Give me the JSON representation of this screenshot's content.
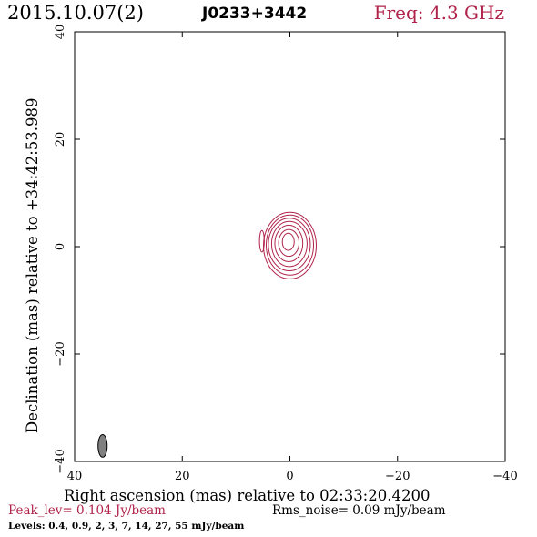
{
  "header": {
    "date": "2015.10.07(2)",
    "source": "J0233+3442",
    "freq": "Freq: 4.3 GHz"
  },
  "chart_data": {
    "type": "contour",
    "xlabel": "Right ascension (mas) relative to 02:33:20.4200",
    "ylabel": "Declination (mas) relative to +34:42:53.989",
    "xlim": [
      40,
      -40
    ],
    "ylim": [
      -40,
      40
    ],
    "xticks": [
      40,
      20,
      0,
      -20,
      -40
    ],
    "yticks": [
      -40,
      -20,
      0,
      20,
      40
    ],
    "xtick_labels": [
      "40",
      "20",
      "0",
      "−20",
      "−40"
    ],
    "ytick_labels": [
      "−40",
      "−20",
      "0",
      "20",
      "40"
    ],
    "contour_color": "#b0234a",
    "contour_levels_mJy": [
      0.4,
      0.9,
      2,
      3,
      7,
      14,
      27,
      55
    ],
    "contours": [
      {
        "cx": 0.0,
        "cy": 0.2,
        "rx": 4.9,
        "ry": 6.2
      },
      {
        "cx": 0.0,
        "cy": 0.3,
        "rx": 4.4,
        "ry": 5.6
      },
      {
        "cx": 0.1,
        "cy": 0.4,
        "rx": 3.9,
        "ry": 4.9
      },
      {
        "cx": 0.1,
        "cy": 0.5,
        "rx": 3.3,
        "ry": 4.2
      },
      {
        "cx": 0.2,
        "cy": 0.6,
        "rx": 2.6,
        "ry": 3.4
      },
      {
        "cx": 0.2,
        "cy": 0.7,
        "rx": 1.9,
        "ry": 2.5
      },
      {
        "cx": 0.3,
        "cy": 0.9,
        "rx": 1.1,
        "ry": 1.6
      }
    ],
    "secondary_contour": {
      "cx": 5.2,
      "cy": 1.0,
      "rx": 0.45,
      "ry": 2.0
    },
    "beam": {
      "cx": 34.8,
      "cy": -37.1,
      "rx": 0.85,
      "ry": 2.1,
      "fill": "#808080"
    }
  },
  "footer": {
    "peak": "Peak_lev=  0.104 Jy/beam",
    "rms": "Rms_noise= 0.09 mJy/beam",
    "levels": "Levels: 0.4, 0.9,   2,   3,   7,  14,  27,  55 mJy/beam"
  }
}
